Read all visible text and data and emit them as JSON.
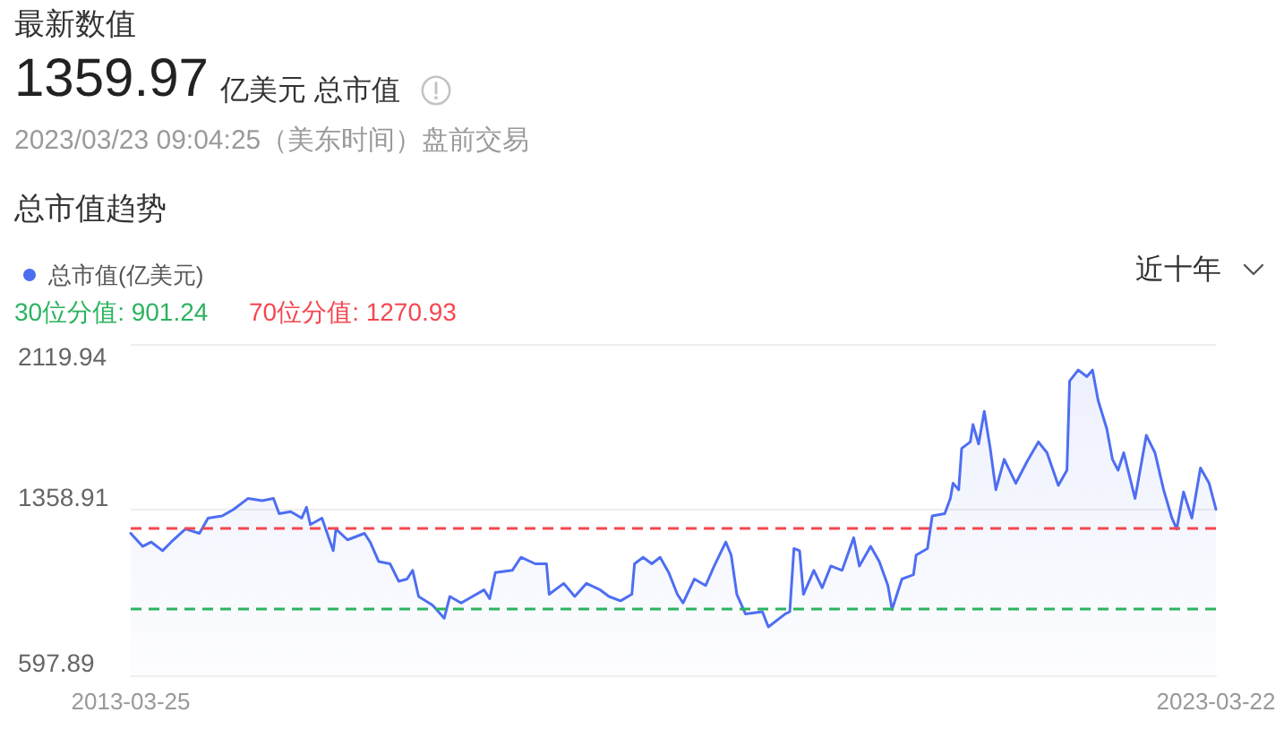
{
  "chart_data": {
    "type": "area",
    "title": "总市值趋势",
    "annotations": [
      "最新数值",
      "1359.97",
      "亿美元 总市值",
      "2023/03/23 09:04:25（美东时间）盘前交易",
      "近十年"
    ],
    "x": [
      "2013-03-25",
      "2013-05-04",
      "2013-06-02",
      "2013-07-10",
      "2013-08-08",
      "2013-09-25",
      "2013-11-11",
      "2013-12-10",
      "2014-01-27",
      "2014-03-06",
      "2014-04-23",
      "2014-06-10",
      "2014-07-18",
      "2014-08-06",
      "2014-09-14",
      "2014-10-21",
      "2014-11-06",
      "2014-11-19",
      "2014-12-28",
      "2015-02-04",
      "2015-02-13",
      "2015-03-24",
      "2015-05-20",
      "2015-06-08",
      "2015-07-07",
      "2015-08-14",
      "2015-09-12",
      "2015-10-10",
      "2015-10-29",
      "2015-11-18",
      "2016-01-04",
      "2016-02-12",
      "2016-03-02",
      "2016-04-09",
      "2016-05-17",
      "2016-06-25",
      "2016-07-14",
      "2016-08-02",
      "2016-09-28",
      "2016-10-27",
      "2016-12-14",
      "2017-01-21",
      "2017-01-30",
      "2017-03-20",
      "2017-04-26",
      "2017-06-04",
      "2017-07-21",
      "2017-08-19",
      "2017-09-27",
      "2017-11-04",
      "2017-11-13",
      "2017-12-12",
      "2018-01-10",
      "2018-02-07",
      "2018-03-08",
      "2018-04-06",
      "2018-04-25",
      "2018-06-02",
      "2018-07-10",
      "2018-08-08",
      "2018-09-16",
      "2018-10-04",
      "2018-10-23",
      "2018-11-21",
      "2019-01-17",
      "2019-02-06",
      "2019-04-04",
      "2019-04-19",
      "2019-05-03",
      "2019-05-22",
      "2019-06-04",
      "2019-07-09",
      "2019-08-06",
      "2019-09-04",
      "2019-10-12",
      "2019-11-20",
      "2019-12-09",
      "2020-01-16",
      "2020-02-14",
      "2020-03-14",
      "2020-03-28",
      "2020-04-30",
      "2020-06-08",
      "2020-06-17",
      "2020-07-25",
      "2020-08-10",
      "2020-09-21",
      "2020-10-10",
      "2020-10-19",
      "2020-11-07",
      "2020-11-17",
      "2020-12-16",
      "2020-12-25",
      "2021-01-13",
      "2021-02-01",
      "2021-02-21",
      "2021-03-12",
      "2021-04-09",
      "2021-05-18",
      "2021-06-25",
      "2021-08-02",
      "2021-08-31",
      "2021-10-08",
      "2021-11-06",
      "2021-11-15",
      "2021-12-14",
      "2022-01-12",
      "2022-01-31",
      "2022-02-19",
      "2022-03-20",
      "2022-04-08",
      "2022-04-27",
      "2022-05-16",
      "2022-06-23",
      "2022-07-31",
      "2022-08-29",
      "2022-09-27",
      "2022-10-25",
      "2022-11-10",
      "2022-12-03",
      "2022-12-31",
      "2023-01-29",
      "2023-02-27",
      "2023-03-22"
    ],
    "series": [
      {
        "name": "总市值(亿美元)",
        "color": "#4e6ef2",
        "values": [
          1250,
          1190,
          1210,
          1170,
          1210,
          1270,
          1250,
          1320,
          1330,
          1360,
          1410,
          1400,
          1410,
          1340,
          1350,
          1320,
          1370,
          1290,
          1320,
          1170,
          1270,
          1220,
          1250,
          1210,
          1120,
          1110,
          1030,
          1040,
          1080,
          960,
          920,
          860,
          960,
          930,
          960,
          990,
          950,
          1070,
          1080,
          1140,
          1110,
          1110,
          970,
          1020,
          960,
          1020,
          990,
          960,
          940,
          970,
          1110,
          1140,
          1110,
          1140,
          1070,
          970,
          930,
          1040,
          1010,
          1100,
          1210,
          1150,
          970,
          880,
          890,
          820,
          880,
          890,
          1180,
          1170,
          970,
          1080,
          1000,
          1100,
          1080,
          1230,
          1100,
          1190,
          1120,
          1010,
          900,
          1040,
          1060,
          1150,
          1180,
          1330,
          1340,
          1410,
          1480,
          1450,
          1640,
          1670,
          1750,
          1660,
          1810,
          1640,
          1450,
          1590,
          1480,
          1580,
          1670,
          1620,
          1470,
          1540,
          1950,
          2000,
          1970,
          2000,
          1860,
          1730,
          1590,
          1540,
          1620,
          1410,
          1700,
          1620,
          1450,
          1320,
          1270,
          1440,
          1320,
          1550,
          1480,
          1360
        ]
      }
    ],
    "xlim": [
      "2013-03-25",
      "2023-03-22"
    ],
    "xticks": [
      "2013-03-25",
      "2023-03-22"
    ],
    "ylim": [
      597.89,
      2119.94
    ],
    "yticks": [
      597.89,
      1358.91,
      2119.94
    ],
    "ref_lines": [
      {
        "axis": "y",
        "value": 901.24,
        "label": "30位分值: 901.24",
        "color": "#2bb35f",
        "line_style": "dashed"
      },
      {
        "axis": "y",
        "value": 1270.93,
        "label": "70位分值: 1270.93",
        "color": "#f5474f",
        "line_style": "dashed"
      }
    ],
    "grid": "y",
    "legend": "top left",
    "marker": "none"
  }
}
